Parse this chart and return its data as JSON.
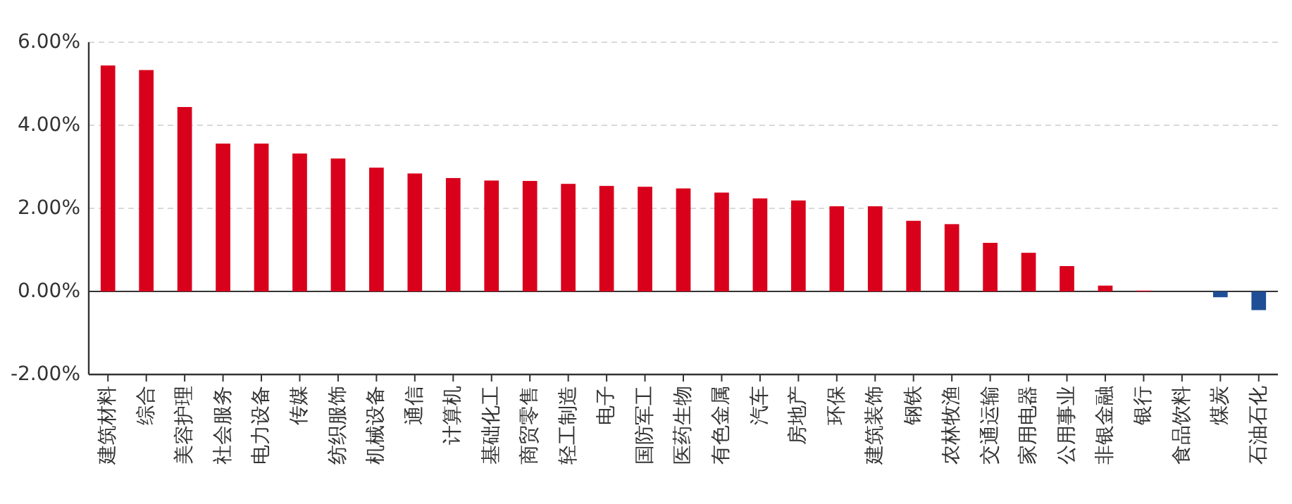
{
  "chart_data": {
    "type": "bar",
    "categories": [
      "建筑材料",
      "综合",
      "美容护理",
      "社会服务",
      "电力设备",
      "传媒",
      "纺织服饰",
      "机械设备",
      "通信",
      "计算机",
      "基础化工",
      "商贸零售",
      "轻工制造",
      "电子",
      "国防军工",
      "医药生物",
      "有色金属",
      "汽车",
      "房地产",
      "环保",
      "建筑装饰",
      "钢铁",
      "农林牧渔",
      "交通运输",
      "家用电器",
      "公用事业",
      "非银金融",
      "银行",
      "食品饮料",
      "煤炭",
      "石油石化"
    ],
    "values": [
      5.44,
      5.33,
      4.44,
      3.56,
      3.56,
      3.32,
      3.2,
      2.98,
      2.84,
      2.73,
      2.67,
      2.66,
      2.59,
      2.54,
      2.52,
      2.48,
      2.38,
      2.24,
      2.19,
      2.05,
      2.05,
      1.7,
      1.62,
      1.17,
      0.93,
      0.61,
      0.14,
      0.02,
      0,
      -0.14,
      -0.45
    ],
    "colors": [
      "#d9001b",
      "#d9001b",
      "#d9001b",
      "#d9001b",
      "#d9001b",
      "#d9001b",
      "#d9001b",
      "#d9001b",
      "#d9001b",
      "#d9001b",
      "#d9001b",
      "#d9001b",
      "#d9001b",
      "#d9001b",
      "#d9001b",
      "#d9001b",
      "#d9001b",
      "#d9001b",
      "#d9001b",
      "#d9001b",
      "#d9001b",
      "#d9001b",
      "#d9001b",
      "#d9001b",
      "#d9001b",
      "#d9001b",
      "#d9001b",
      "#d9001b",
      "#d9001b",
      "#1f4e96",
      "#1f4e96"
    ],
    "ylim": [
      -2,
      6
    ],
    "yticks": [
      {
        "value": -2,
        "label": "-2.00%"
      },
      {
        "value": 0,
        "label": "0.00%"
      },
      {
        "value": 2,
        "label": "2.00%"
      },
      {
        "value": 4,
        "label": "4.00%"
      },
      {
        "value": 6,
        "label": "6.00%"
      }
    ],
    "grid": "y"
  }
}
